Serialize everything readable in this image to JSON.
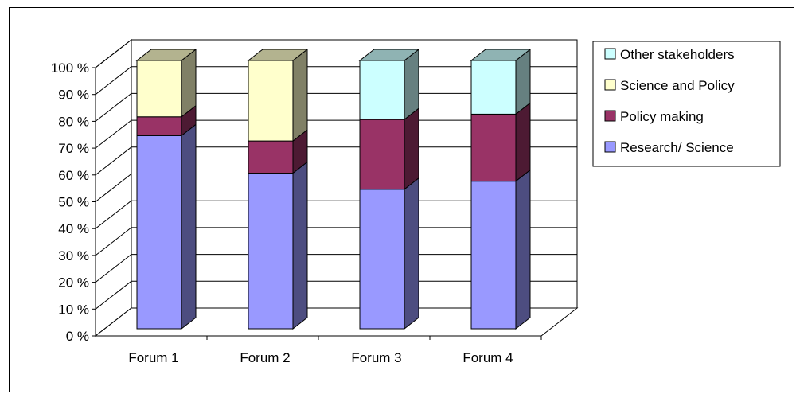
{
  "chart_data": {
    "type": "bar",
    "stacked": true,
    "three_d": true,
    "categories": [
      "Forum 1",
      "Forum 2",
      "Forum 3",
      "Forum 4"
    ],
    "series": [
      {
        "name": "Research/ Science",
        "values": [
          72,
          58,
          52,
          55
        ],
        "color": "#9999FF"
      },
      {
        "name": "Policy making",
        "values": [
          7,
          12,
          26,
          25
        ],
        "color": "#993366"
      },
      {
        "name": "Science and Policy",
        "values": [
          21,
          30,
          0,
          0
        ],
        "color": "#FFFFCC"
      },
      {
        "name": "Other stakeholders",
        "values": [
          0,
          0,
          22,
          20
        ],
        "color": "#CCFFFF"
      }
    ],
    "y_ticks": [
      "0 %",
      "10 %",
      "20 %",
      "30 %",
      "40 %",
      "50 %",
      "60 %",
      "70 %",
      "80 %",
      "90 %",
      "100 %"
    ],
    "ylim": [
      0,
      100
    ],
    "grid": true,
    "legend_position": "top-right",
    "legend_order": [
      "Other stakeholders",
      "Science and Policy",
      "Policy making",
      "Research/ Science"
    ]
  }
}
